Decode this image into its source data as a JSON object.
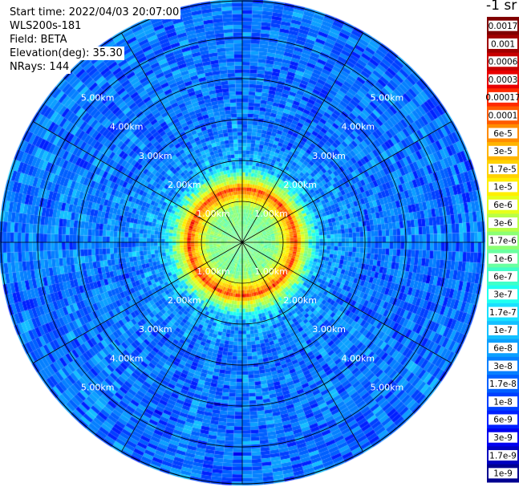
{
  "header": {
    "start_time": "Start time: 2022/04/03 20:07:00",
    "instrument": "WLS200s-181",
    "field": "Field: BETA",
    "elevation": "Elevation(deg): 35.30",
    "nrays": "NRays: 144",
    "unit": "-1 sr"
  },
  "chart_data": {
    "type": "heatmap",
    "projection": "polar",
    "field": "BETA",
    "nrays": 144,
    "range_rings": [
      "1.00km",
      "2.00km",
      "3.00km",
      "4.00km",
      "5.00km"
    ],
    "azimuth_spokes_deg": [
      0,
      30,
      60,
      90,
      120,
      150,
      180,
      210,
      240,
      270,
      300,
      330
    ],
    "max_range_km": 5.9,
    "profile": [
      {
        "range_km": 0.0,
        "beta": 1.7e-06
      },
      {
        "range_km": 0.8,
        "beta": 1.7e-06
      },
      {
        "range_km": 1.1,
        "beta": 1.7e-05
      },
      {
        "range_km": 1.3,
        "beta": 0.0002
      },
      {
        "range_km": 1.45,
        "beta": 1e-05
      },
      {
        "range_km": 1.9,
        "beta": 1e-07
      },
      {
        "range_km": 2.2,
        "beta": 6e-08
      },
      {
        "range_km": 3.0,
        "beta": 3e-08
      },
      {
        "range_km": 5.9,
        "beta": 3e-08
      }
    ],
    "colorbar": {
      "labels": [
        "0.0017",
        "0.001",
        "0.0006",
        "0.0003",
        "0.00017",
        "0.0001",
        "6e-5",
        "3e-5",
        "1.7e-5",
        "1e-5",
        "6e-6",
        "3e-6",
        "1.7e-6",
        "1e-6",
        "6e-7",
        "3e-7",
        "1.7e-7",
        "1e-7",
        "6e-8",
        "3e-8",
        "1.7e-8",
        "1e-8",
        "6e-9",
        "3e-9",
        "1.7e-9",
        "1e-9"
      ],
      "colors": [
        "#800000",
        "#a00000",
        "#c80000",
        "#e80000",
        "#ff2a00",
        "#ff5a00",
        "#ff8c00",
        "#ffb400",
        "#ffd200",
        "#ffee00",
        "#e6ff1a",
        "#b8ff47",
        "#8cff73",
        "#6affa0",
        "#40ffc8",
        "#20fff0",
        "#1ae0ff",
        "#14c0ff",
        "#0ca0ff",
        "#0680ff",
        "#0060ff",
        "#0040ff",
        "#0020ff",
        "#0000f0",
        "#0000c0",
        "#000090"
      ]
    }
  }
}
